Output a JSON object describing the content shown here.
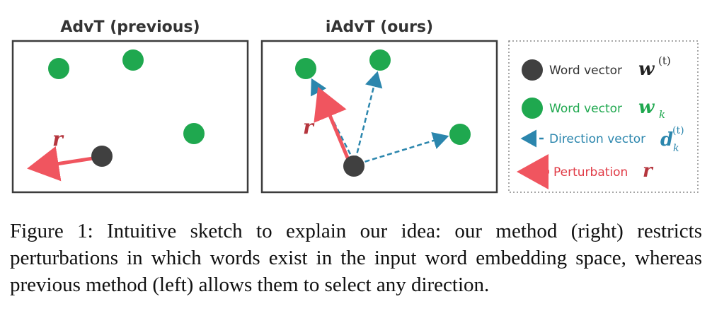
{
  "panels": {
    "left_title": "AdvT (previous)",
    "right_title": "iAdvT (ours)"
  },
  "labels": {
    "r_left": "r",
    "r_right": "r"
  },
  "legend": {
    "word_vector_t": "Word vector",
    "word_vector_t_sym": "w",
    "word_vector_t_sup": "(t)",
    "word_vector_k": "Word vector",
    "word_vector_k_sym": "w",
    "word_vector_k_sub": "k",
    "direction_vector": "Direction vector",
    "direction_sym": "d",
    "direction_sup": "(t)",
    "direction_sub": "k",
    "perturbation": "Perturbation",
    "perturbation_sym": "r"
  },
  "colors": {
    "green": "#1fa84f",
    "dark": "#404040",
    "red": "#f0555f",
    "blue": "#2b86ad",
    "frame": "#3c3c3c"
  },
  "caption": "Figure 1: Intuitive sketch to explain our idea: our method (right) restricts perturbations in which words exist in the input word embedding space, whereas previous method (left) allows them to select any direction."
}
